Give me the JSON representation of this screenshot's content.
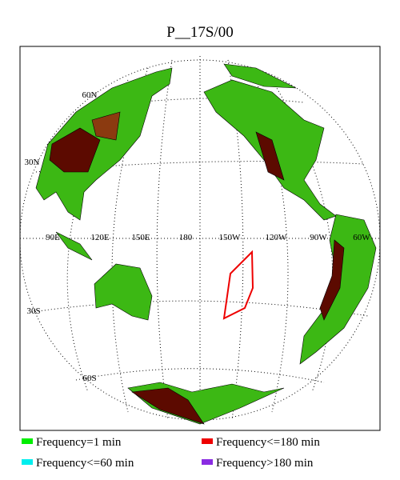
{
  "title": "P__17S/00",
  "graticule_labels": [
    "60N",
    "30N",
    "90E",
    "120E",
    "150E",
    "180",
    "150W",
    "120W",
    "90W",
    "60W",
    "30S",
    "60S"
  ],
  "legend": [
    {
      "label": "Frequency=1 min",
      "color": "#00ee00"
    },
    {
      "label": "Frequency<=180 min",
      "color": "#ee0000"
    },
    {
      "label": "Frequency<=60 min",
      "color": "#00eeee"
    },
    {
      "label": "Frequency>180 min",
      "color": "#8a2be2"
    }
  ]
}
